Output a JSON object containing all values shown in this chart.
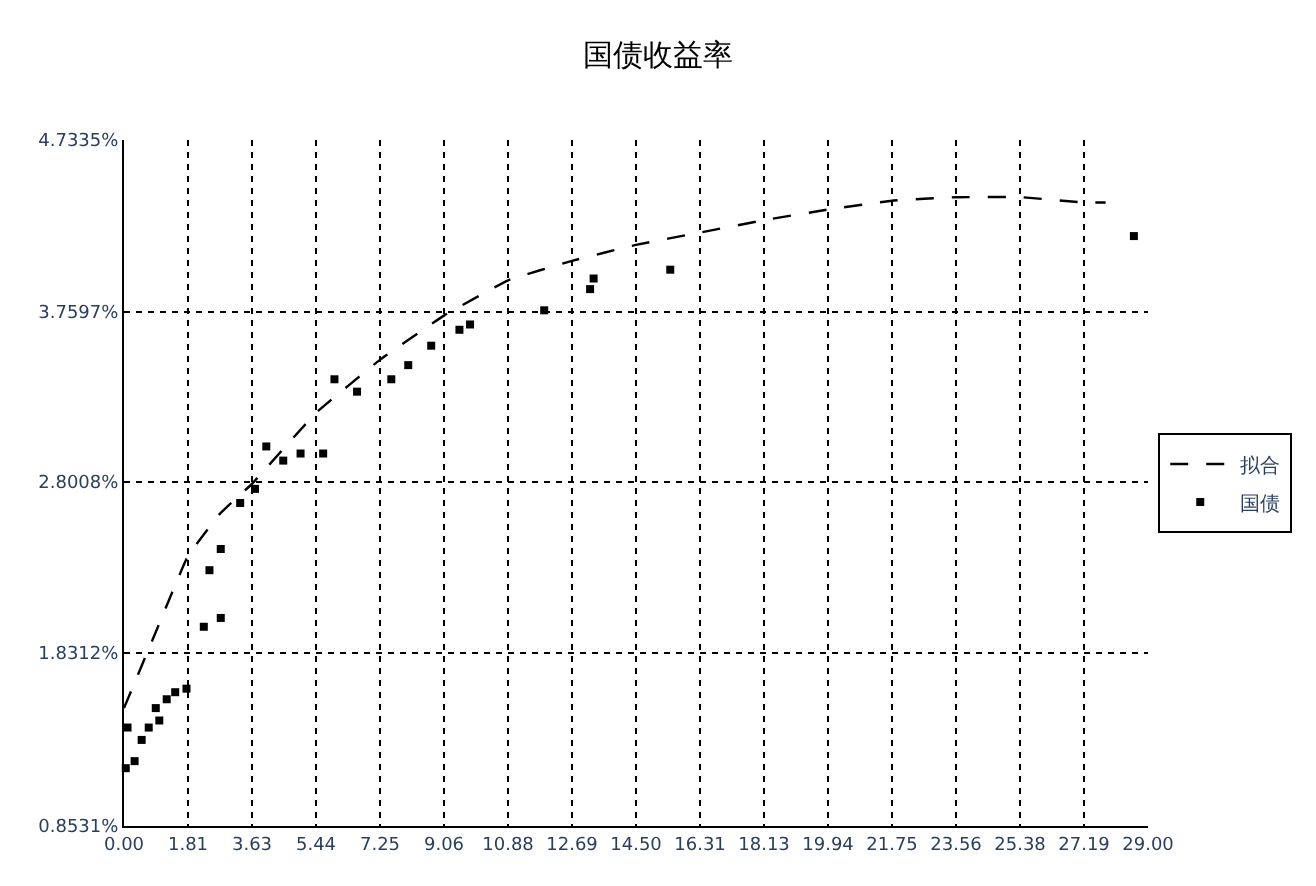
{
  "chart_data": {
    "type": "scatter",
    "title": "国债收益率",
    "legend": "right",
    "grid": true,
    "xlim": [
      0,
      29
    ],
    "xticks": [
      {
        "value": 0,
        "label": "0.00"
      },
      {
        "value": 1.8125,
        "label": "1.81"
      },
      {
        "value": 3.625,
        "label": "3.63"
      },
      {
        "value": 5.4375,
        "label": "5.44"
      },
      {
        "value": 7.25,
        "label": "7.25"
      },
      {
        "value": 9.0625,
        "label": "9.06"
      },
      {
        "value": 10.875,
        "label": "10.88"
      },
      {
        "value": 12.6875,
        "label": "12.69"
      },
      {
        "value": 14.5,
        "label": "14.50"
      },
      {
        "value": 16.3125,
        "label": "16.31"
      },
      {
        "value": 18.125,
        "label": "18.13"
      },
      {
        "value": 19.9375,
        "label": "19.94"
      },
      {
        "value": 21.75,
        "label": "21.75"
      },
      {
        "value": 23.5625,
        "label": "23.56"
      },
      {
        "value": 25.375,
        "label": "25.38"
      },
      {
        "value": 27.1875,
        "label": "27.19"
      },
      {
        "value": 29,
        "label": "29.00"
      }
    ],
    "ylim": [
      0.8531,
      4.7335
    ],
    "yticks": [
      {
        "value": 0.8531,
        "label": "0.8531%"
      },
      {
        "value": 1.8312,
        "label": "1.8312%"
      },
      {
        "value": 2.8008,
        "label": "2.8008%"
      },
      {
        "value": 3.7597,
        "label": "3.7597%"
      },
      {
        "value": 4.7335,
        "label": "4.7335%"
      }
    ],
    "series": [
      {
        "name": "拟合",
        "type": "line",
        "color": "#000000",
        "line_style": "dashed",
        "marker": "none",
        "x": [
          0,
          0.9,
          1.81,
          2.72,
          3.63,
          5.44,
          7.25,
          9.06,
          10.88,
          12.69,
          14.5,
          16.31,
          18.13,
          19.94,
          21.75,
          23.56,
          25.38,
          27.19,
          27.8
        ],
        "values": [
          1.52,
          1.95,
          2.38,
          2.62,
          2.79,
          3.19,
          3.49,
          3.74,
          3.94,
          4.05,
          4.14,
          4.21,
          4.28,
          4.34,
          4.39,
          4.41,
          4.41,
          4.38,
          4.38
        ]
      },
      {
        "name": "国债",
        "color": "#000000",
        "marker": "square",
        "x": [
          0.05,
          0.1,
          0.3,
          0.5,
          0.7,
          0.9,
          1.0,
          1.21,
          1.45,
          1.77,
          2.26,
          2.42,
          2.74,
          2.74,
          3.29,
          3.71,
          4.03,
          4.51,
          5.0,
          5.64,
          5.96,
          6.6,
          7.57,
          8.05,
          8.7,
          9.5,
          9.8,
          11.9,
          13.2,
          13.3,
          15.47,
          28.6
        ],
        "values": [
          1.18,
          1.41,
          1.22,
          1.34,
          1.41,
          1.52,
          1.45,
          1.57,
          1.61,
          1.63,
          1.98,
          2.3,
          2.42,
          2.03,
          2.68,
          2.76,
          3.0,
          2.92,
          2.96,
          2.96,
          3.38,
          3.31,
          3.38,
          3.46,
          3.57,
          3.66,
          3.69,
          3.77,
          3.89,
          3.95,
          4.0,
          4.19
        ]
      }
    ]
  }
}
